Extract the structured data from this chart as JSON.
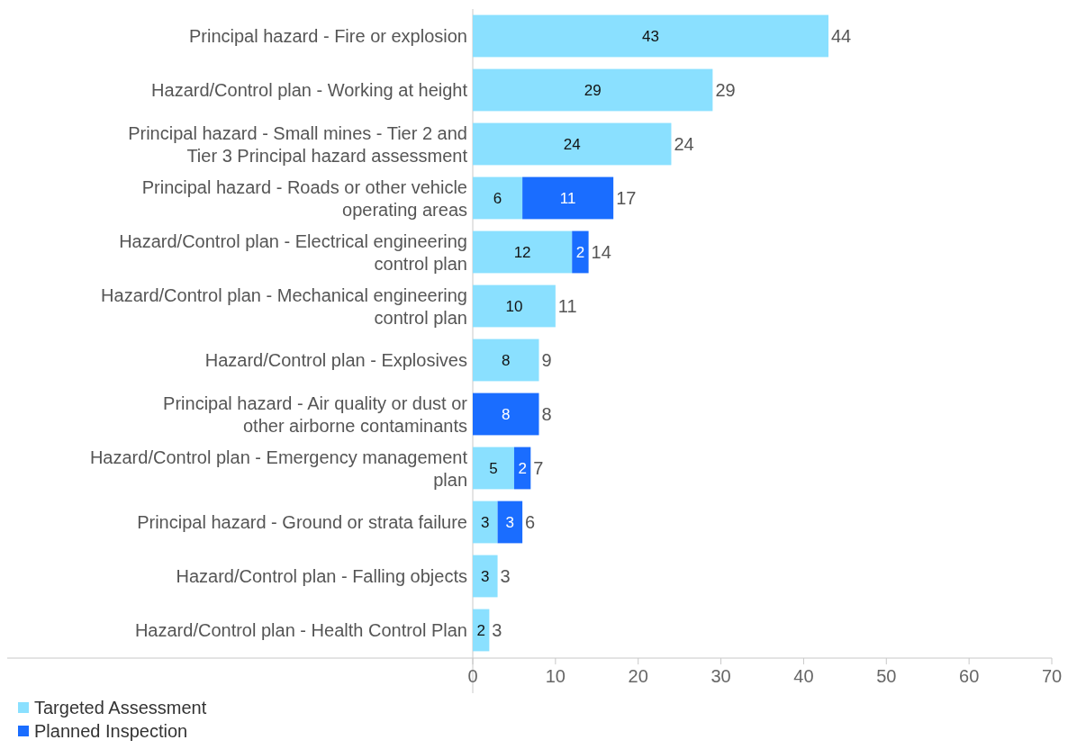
{
  "chart_data": {
    "type": "bar",
    "orientation": "horizontal",
    "stacked": true,
    "categories": [
      "Principal hazard - Fire or explosion",
      "Hazard/Control plan - Working at height",
      "Principal hazard - Small mines - Tier 2 and Tier 3 Principal hazard assessment",
      "Principal hazard - Roads or other vehicle operating areas",
      "Hazard/Control plan - Electrical engineering control plan",
      "Hazard/Control plan - Mechanical engineering control plan",
      "Hazard/Control plan - Explosives",
      "Principal hazard - Air quality or dust or other airborne contaminants",
      "Hazard/Control plan - Emergency management plan",
      "Principal hazard - Ground or strata failure",
      "Hazard/Control plan - Falling objects",
      "Hazard/Control plan - Health Control Plan"
    ],
    "series": [
      {
        "name": "Targeted Assessment",
        "color": "#8ae0ff",
        "values": [
          43,
          29,
          24,
          6,
          12,
          10,
          8,
          null,
          5,
          3,
          3,
          2
        ]
      },
      {
        "name": "Planned Inspection",
        "color": "#1a6dff",
        "values": [
          null,
          null,
          null,
          11,
          2,
          null,
          null,
          8,
          2,
          3,
          null,
          null
        ]
      }
    ],
    "totals": [
      "44",
      "29",
      "24",
      "17",
      "14",
      "11",
      "9",
      "8",
      "7",
      "6",
      "3",
      "3"
    ],
    "data_labels": true,
    "xlim": [
      0,
      70
    ],
    "xticks": [
      0,
      10,
      20,
      30,
      40,
      50,
      60,
      70
    ],
    "grid": false,
    "legend": "bottom left"
  }
}
